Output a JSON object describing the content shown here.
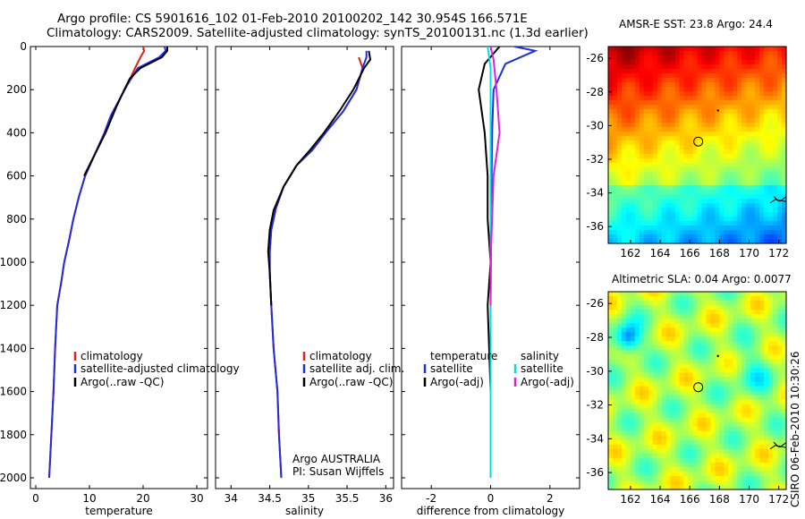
{
  "header": {
    "line1": "Argo profile: CS 5901616_102 01-Feb-2010 20100202_142 30.954S 166.571E",
    "line2": "Climatology: CARS2009. Satellite-adjusted climatology: synTS_20100131.nc (1.3d earlier)"
  },
  "side_label": "CSIRO 06-Feb-2010 10:30:26",
  "colors": {
    "climatology": "#e0201b",
    "satellite": "#1f2fe0",
    "argo": "#000000",
    "sat_temp_diff": "#00e0e0",
    "argo_sal_diff": "#e020e0"
  },
  "chart_data": [
    {
      "type": "line",
      "xlabel": "temperature",
      "ylabel": "",
      "xlim": [
        -1,
        32
      ],
      "ylim": [
        2050,
        0
      ],
      "xticks": [
        0,
        10,
        20,
        30
      ],
      "yticks": [
        0,
        200,
        400,
        600,
        800,
        1000,
        1200,
        1400,
        1600,
        1800,
        2000
      ],
      "legend": [
        "climatology",
        "satellite-adjusted climatology",
        "Argo(..raw -QC)"
      ],
      "legend_position": "middle-right",
      "series": [
        {
          "name": "climatology",
          "color": "#e0201b",
          "points": [
            [
              20.0,
              0
            ],
            [
              20.2,
              20
            ],
            [
              19.5,
              50
            ],
            [
              18.5,
              100
            ],
            [
              17.0,
              180
            ],
            [
              15.5,
              250
            ],
            [
              14.0,
              320
            ],
            [
              12.8,
              400
            ],
            [
              11.0,
              500
            ],
            [
              9.2,
              600
            ],
            [
              8.0,
              700
            ],
            [
              7.0,
              800
            ],
            [
              6.2,
              900
            ],
            [
              5.3,
              1000
            ],
            [
              4.7,
              1100
            ],
            [
              4.0,
              1200
            ],
            [
              3.6,
              1400
            ],
            [
              3.3,
              1600
            ],
            [
              2.9,
              1800
            ],
            [
              2.5,
              2000
            ]
          ]
        },
        {
          "name": "satellite-adjusted climatology",
          "color": "#1f2fe0",
          "points": [
            [
              24.0,
              0
            ],
            [
              24.2,
              20
            ],
            [
              23.0,
              50
            ],
            [
              19.0,
              100
            ],
            [
              17.0,
              180
            ],
            [
              15.5,
              250
            ],
            [
              14.0,
              320
            ],
            [
              12.8,
              400
            ],
            [
              11.0,
              500
            ],
            [
              9.2,
              600
            ],
            [
              8.0,
              700
            ],
            [
              7.0,
              800
            ],
            [
              6.2,
              900
            ],
            [
              5.3,
              1000
            ],
            [
              4.7,
              1100
            ],
            [
              4.0,
              1200
            ],
            [
              3.6,
              1400
            ],
            [
              3.3,
              1600
            ],
            [
              2.9,
              1800
            ],
            [
              2.5,
              2000
            ]
          ]
        },
        {
          "name": "Argo(..raw -QC)",
          "color": "#000000",
          "points": [
            [
              24.5,
              0
            ],
            [
              24.5,
              20
            ],
            [
              23.5,
              50
            ],
            [
              19.5,
              100
            ],
            [
              17.5,
              150
            ],
            [
              16.5,
              200
            ],
            [
              15.0,
              280
            ],
            [
              13.0,
              400
            ],
            [
              11.0,
              500
            ],
            [
              9.0,
              600
            ]
          ]
        }
      ]
    },
    {
      "type": "line",
      "xlabel": "salinity",
      "ylabel": "",
      "xlim": [
        33.8,
        36.1
      ],
      "ylim": [
        2050,
        0
      ],
      "xticks": [
        34,
        34.5,
        35,
        35.5,
        36
      ],
      "xtick_labels": [
        "34",
        "34.5",
        "35",
        "35.5",
        "36"
      ],
      "legend": [
        "climatology",
        "satellite adj. clim.",
        "Argo(..raw -QC)"
      ],
      "legend_position": "middle-right",
      "annotation": [
        "Argo AUSTRALIA",
        "PI: Susan Wijffels"
      ],
      "series": [
        {
          "name": "climatology",
          "color": "#e0201b",
          "points": [
            [
              35.65,
              50
            ],
            [
              35.7,
              100
            ],
            [
              35.62,
              200
            ],
            [
              35.45,
              300
            ],
            [
              35.22,
              400
            ],
            [
              35.05,
              480
            ],
            [
              34.85,
              550
            ],
            [
              34.68,
              650
            ],
            [
              34.58,
              750
            ],
            [
              34.52,
              850
            ],
            [
              34.5,
              950
            ],
            [
              34.5,
              1050
            ],
            [
              34.52,
              1200
            ],
            [
              34.55,
              1400
            ],
            [
              34.6,
              1600
            ],
            [
              34.62,
              1800
            ],
            [
              34.65,
              2000
            ]
          ]
        },
        {
          "name": "satellite adj. clim.",
          "color": "#1f2fe0",
          "points": [
            [
              35.75,
              20
            ],
            [
              35.75,
              50
            ],
            [
              35.7,
              100
            ],
            [
              35.62,
              200
            ],
            [
              35.45,
              300
            ],
            [
              35.22,
              400
            ],
            [
              35.05,
              480
            ],
            [
              34.85,
              550
            ],
            [
              34.68,
              650
            ],
            [
              34.58,
              750
            ],
            [
              34.52,
              850
            ],
            [
              34.5,
              950
            ],
            [
              34.5,
              1050
            ],
            [
              34.52,
              1200
            ],
            [
              34.55,
              1400
            ],
            [
              34.6,
              1600
            ],
            [
              34.62,
              1800
            ],
            [
              34.65,
              2000
            ]
          ]
        },
        {
          "name": "Argo(..raw -QC)",
          "color": "#000000",
          "points": [
            [
              35.78,
              20
            ],
            [
              35.8,
              60
            ],
            [
              35.72,
              100
            ],
            [
              35.58,
              200
            ],
            [
              35.4,
              300
            ],
            [
              35.2,
              400
            ],
            [
              35.02,
              480
            ],
            [
              34.85,
              550
            ],
            [
              34.68,
              650
            ],
            [
              34.55,
              760
            ],
            [
              34.5,
              850
            ],
            [
              34.48,
              950
            ],
            [
              34.5,
              1050
            ],
            [
              34.52,
              1200
            ]
          ]
        }
      ]
    },
    {
      "type": "line",
      "xlabel": "difference from climatology",
      "ylabel": "",
      "xlim": [
        -3,
        3
      ],
      "ylim": [
        2050,
        0
      ],
      "xticks": [
        -2,
        0,
        2
      ],
      "legend": [
        "temperature",
        "satellite",
        "Argo(-adj)",
        "salinity",
        "satellite",
        "Argo(-adj)"
      ],
      "legend_position": "middle",
      "series": [
        {
          "name": "satellite",
          "group": "temperature",
          "color": "#1f2fe0",
          "points": [
            [
              0.8,
              0
            ],
            [
              1.5,
              20
            ],
            [
              0.5,
              80
            ],
            [
              0.1,
              200
            ],
            [
              0.05,
              400
            ],
            [
              0.02,
              800
            ],
            [
              0.0,
              1200
            ],
            [
              0.0,
              1600
            ],
            [
              0.0,
              2000
            ]
          ]
        },
        {
          "name": "Argo(-adj)",
          "group": "temperature",
          "color": "#000000",
          "points": [
            [
              0.3,
              0
            ],
            [
              -0.2,
              80
            ],
            [
              -0.4,
              200
            ],
            [
              -0.2,
              400
            ],
            [
              -0.1,
              600
            ],
            [
              -0.1,
              800
            ],
            [
              0.0,
              1000
            ],
            [
              -0.1,
              1200
            ],
            [
              0.0,
              1600
            ],
            [
              0.0,
              1900
            ]
          ]
        },
        {
          "name": "satellite",
          "group": "salinity",
          "color": "#00e0e0",
          "points": [
            [
              -0.1,
              0
            ],
            [
              0.0,
              100
            ],
            [
              0.0,
              400
            ],
            [
              0.0,
              800
            ],
            [
              0.0,
              1200
            ],
            [
              0.0,
              1600
            ],
            [
              0.0,
              2000
            ]
          ]
        },
        {
          "name": "Argo(-adj)",
          "group": "salinity",
          "color": "#e020e0",
          "points": [
            [
              0.0,
              0
            ],
            [
              0.1,
              60
            ],
            [
              0.2,
              200
            ],
            [
              0.3,
              400
            ],
            [
              0.1,
              600
            ],
            [
              0.05,
              800
            ],
            [
              0.0,
              1000
            ],
            [
              0.0,
              1200
            ]
          ]
        }
      ]
    },
    {
      "type": "heatmap",
      "title": "AMSR-E SST: 23.8 Argo: 24.4",
      "xlim": [
        160.5,
        172.5
      ],
      "ylim": [
        -37,
        -25.3
      ],
      "xticks": [
        162,
        164,
        166,
        168,
        170,
        172
      ],
      "yticks": [
        -26,
        -28,
        -30,
        -32,
        -34,
        -36
      ],
      "argo_position": [
        166.57,
        -30.95
      ],
      "colormap": "jet",
      "summary": "warm (red) in the north and northwest grading to orange/yellow, cooler green to the south"
    },
    {
      "type": "heatmap",
      "title": "Altimetric SLA: 0.04 Argo: 0.0077",
      "xlim": [
        160.5,
        172.5
      ],
      "ylim": [
        -37,
        -25.3
      ],
      "xticks": [
        162,
        164,
        166,
        168,
        170,
        172
      ],
      "yticks": [
        -26,
        -28,
        -30,
        -32,
        -34,
        -36
      ],
      "argo_position": [
        166.57,
        -30.95
      ],
      "colormap": "jet",
      "summary": "mostly green with yellow patches and a blue eddy near 162E 28S"
    }
  ]
}
